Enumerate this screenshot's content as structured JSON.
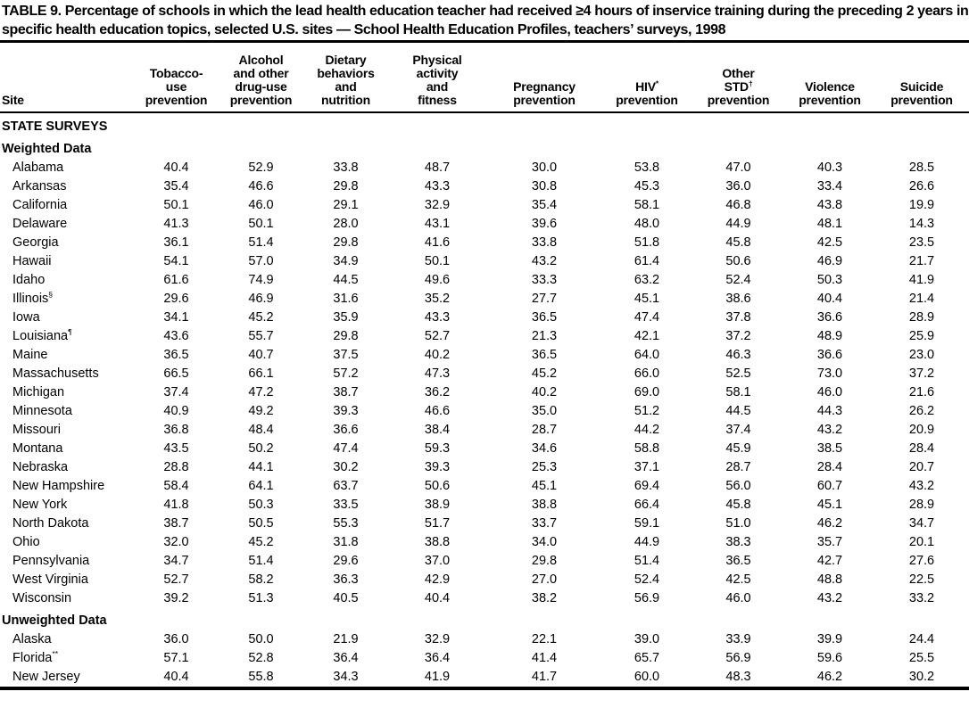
{
  "title": "TABLE 9. Percentage of schools in which the lead health education teacher had received ≥4 hours of inservice training during the preceding 2 years in specific health education topics, selected U.S. sites — School Health Education Profiles, teachers’ surveys, 1998",
  "table": {
    "columns": [
      "Site",
      "Tobacco-\nuse\nprevention",
      "Alcohol\nand other\ndrug-use\nprevention",
      "Dietary\nbehaviors\nand\nnutrition",
      "Physical\nactivity\nand\nfitness",
      "Pregnancy\nprevention",
      "HIV*\nprevention",
      "Other\nSTD†\nprevention",
      "Violence\nprevention",
      "Suicide\nprevention"
    ],
    "groups": [
      {
        "label": "STATE SURVEYS",
        "subgroups": [
          {
            "label": "Weighted Data",
            "rows": [
              {
                "site": "Alabama",
                "values": [
                  "40.4",
                  "52.9",
                  "33.8",
                  "48.7",
                  "30.0",
                  "53.8",
                  "47.0",
                  "40.3",
                  "28.5"
                ]
              },
              {
                "site": "Arkansas",
                "values": [
                  "35.4",
                  "46.6",
                  "29.8",
                  "43.3",
                  "30.8",
                  "45.3",
                  "36.0",
                  "33.4",
                  "26.6"
                ]
              },
              {
                "site": "California",
                "values": [
                  "50.1",
                  "46.0",
                  "29.1",
                  "32.9",
                  "35.4",
                  "58.1",
                  "46.8",
                  "43.8",
                  "19.9"
                ]
              },
              {
                "site": "Delaware",
                "values": [
                  "41.3",
                  "50.1",
                  "28.0",
                  "43.1",
                  "39.6",
                  "48.0",
                  "44.9",
                  "48.1",
                  "14.3"
                ]
              },
              {
                "site": "Georgia",
                "values": [
                  "36.1",
                  "51.4",
                  "29.8",
                  "41.6",
                  "33.8",
                  "51.8",
                  "45.8",
                  "42.5",
                  "23.5"
                ]
              },
              {
                "site": "Hawaii",
                "values": [
                  "54.1",
                  "57.0",
                  "34.9",
                  "50.1",
                  "43.2",
                  "61.4",
                  "50.6",
                  "46.9",
                  "21.7"
                ]
              },
              {
                "site": "Idaho",
                "values": [
                  "61.6",
                  "74.9",
                  "44.5",
                  "49.6",
                  "33.3",
                  "63.2",
                  "52.4",
                  "50.3",
                  "41.9"
                ]
              },
              {
                "site": "Illinois§",
                "values": [
                  "29.6",
                  "46.9",
                  "31.6",
                  "35.2",
                  "27.7",
                  "45.1",
                  "38.6",
                  "40.4",
                  "21.4"
                ]
              },
              {
                "site": "Iowa",
                "values": [
                  "34.1",
                  "45.2",
                  "35.9",
                  "43.3",
                  "36.5",
                  "47.4",
                  "37.8",
                  "36.6",
                  "28.9"
                ]
              },
              {
                "site": "Louisiana¶",
                "values": [
                  "43.6",
                  "55.7",
                  "29.8",
                  "52.7",
                  "21.3",
                  "42.1",
                  "37.2",
                  "48.9",
                  "25.9"
                ]
              },
              {
                "site": "Maine",
                "values": [
                  "36.5",
                  "40.7",
                  "37.5",
                  "40.2",
                  "36.5",
                  "64.0",
                  "46.3",
                  "36.6",
                  "23.0"
                ]
              },
              {
                "site": "Massachusetts",
                "values": [
                  "66.5",
                  "66.1",
                  "57.2",
                  "47.3",
                  "45.2",
                  "66.0",
                  "52.5",
                  "73.0",
                  "37.2"
                ]
              },
              {
                "site": "Michigan",
                "values": [
                  "37.4",
                  "47.2",
                  "38.7",
                  "36.2",
                  "40.2",
                  "69.0",
                  "58.1",
                  "46.0",
                  "21.6"
                ]
              },
              {
                "site": "Minnesota",
                "values": [
                  "40.9",
                  "49.2",
                  "39.3",
                  "46.6",
                  "35.0",
                  "51.2",
                  "44.5",
                  "44.3",
                  "26.2"
                ]
              },
              {
                "site": "Missouri",
                "values": [
                  "36.8",
                  "48.4",
                  "36.6",
                  "38.4",
                  "28.7",
                  "44.2",
                  "37.4",
                  "43.2",
                  "20.9"
                ]
              },
              {
                "site": "Montana",
                "values": [
                  "43.5",
                  "50.2",
                  "47.4",
                  "59.3",
                  "34.6",
                  "58.8",
                  "45.9",
                  "38.5",
                  "28.4"
                ]
              },
              {
                "site": "Nebraska",
                "values": [
                  "28.8",
                  "44.1",
                  "30.2",
                  "39.3",
                  "25.3",
                  "37.1",
                  "28.7",
                  "28.4",
                  "20.7"
                ]
              },
              {
                "site": "New Hampshire",
                "values": [
                  "58.4",
                  "64.1",
                  "63.7",
                  "50.6",
                  "45.1",
                  "69.4",
                  "56.0",
                  "60.7",
                  "43.2"
                ]
              },
              {
                "site": "New York",
                "values": [
                  "41.8",
                  "50.3",
                  "33.5",
                  "38.9",
                  "38.8",
                  "66.4",
                  "45.8",
                  "45.1",
                  "28.9"
                ]
              },
              {
                "site": "North Dakota",
                "values": [
                  "38.7",
                  "50.5",
                  "55.3",
                  "51.7",
                  "33.7",
                  "59.1",
                  "51.0",
                  "46.2",
                  "34.7"
                ]
              },
              {
                "site": "Ohio",
                "values": [
                  "32.0",
                  "45.2",
                  "31.8",
                  "38.8",
                  "34.0",
                  "44.9",
                  "38.3",
                  "35.7",
                  "20.1"
                ]
              },
              {
                "site": "Pennsylvania",
                "values": [
                  "34.7",
                  "51.4",
                  "29.6",
                  "37.0",
                  "29.8",
                  "51.4",
                  "36.5",
                  "42.7",
                  "27.6"
                ]
              },
              {
                "site": "West Virginia",
                "values": [
                  "52.7",
                  "58.2",
                  "36.3",
                  "42.9",
                  "27.0",
                  "52.4",
                  "42.5",
                  "48.8",
                  "22.5"
                ]
              },
              {
                "site": "Wisconsin",
                "values": [
                  "39.2",
                  "51.3",
                  "40.5",
                  "40.4",
                  "38.2",
                  "56.9",
                  "46.0",
                  "43.2",
                  "33.2"
                ]
              }
            ]
          },
          {
            "label": "Unweighted Data",
            "rows": [
              {
                "site": "Alaska",
                "values": [
                  "36.0",
                  "50.0",
                  "21.9",
                  "32.9",
                  "22.1",
                  "39.0",
                  "33.9",
                  "39.9",
                  "24.4"
                ]
              },
              {
                "site": "Florida**",
                "values": [
                  "57.1",
                  "52.8",
                  "36.4",
                  "36.4",
                  "41.4",
                  "65.7",
                  "56.9",
                  "59.6",
                  "25.5"
                ]
              },
              {
                "site": "New Jersey",
                "values": [
                  "40.4",
                  "55.8",
                  "34.3",
                  "41.9",
                  "41.7",
                  "60.0",
                  "48.3",
                  "46.2",
                  "30.2"
                ]
              }
            ]
          }
        ]
      }
    ]
  }
}
